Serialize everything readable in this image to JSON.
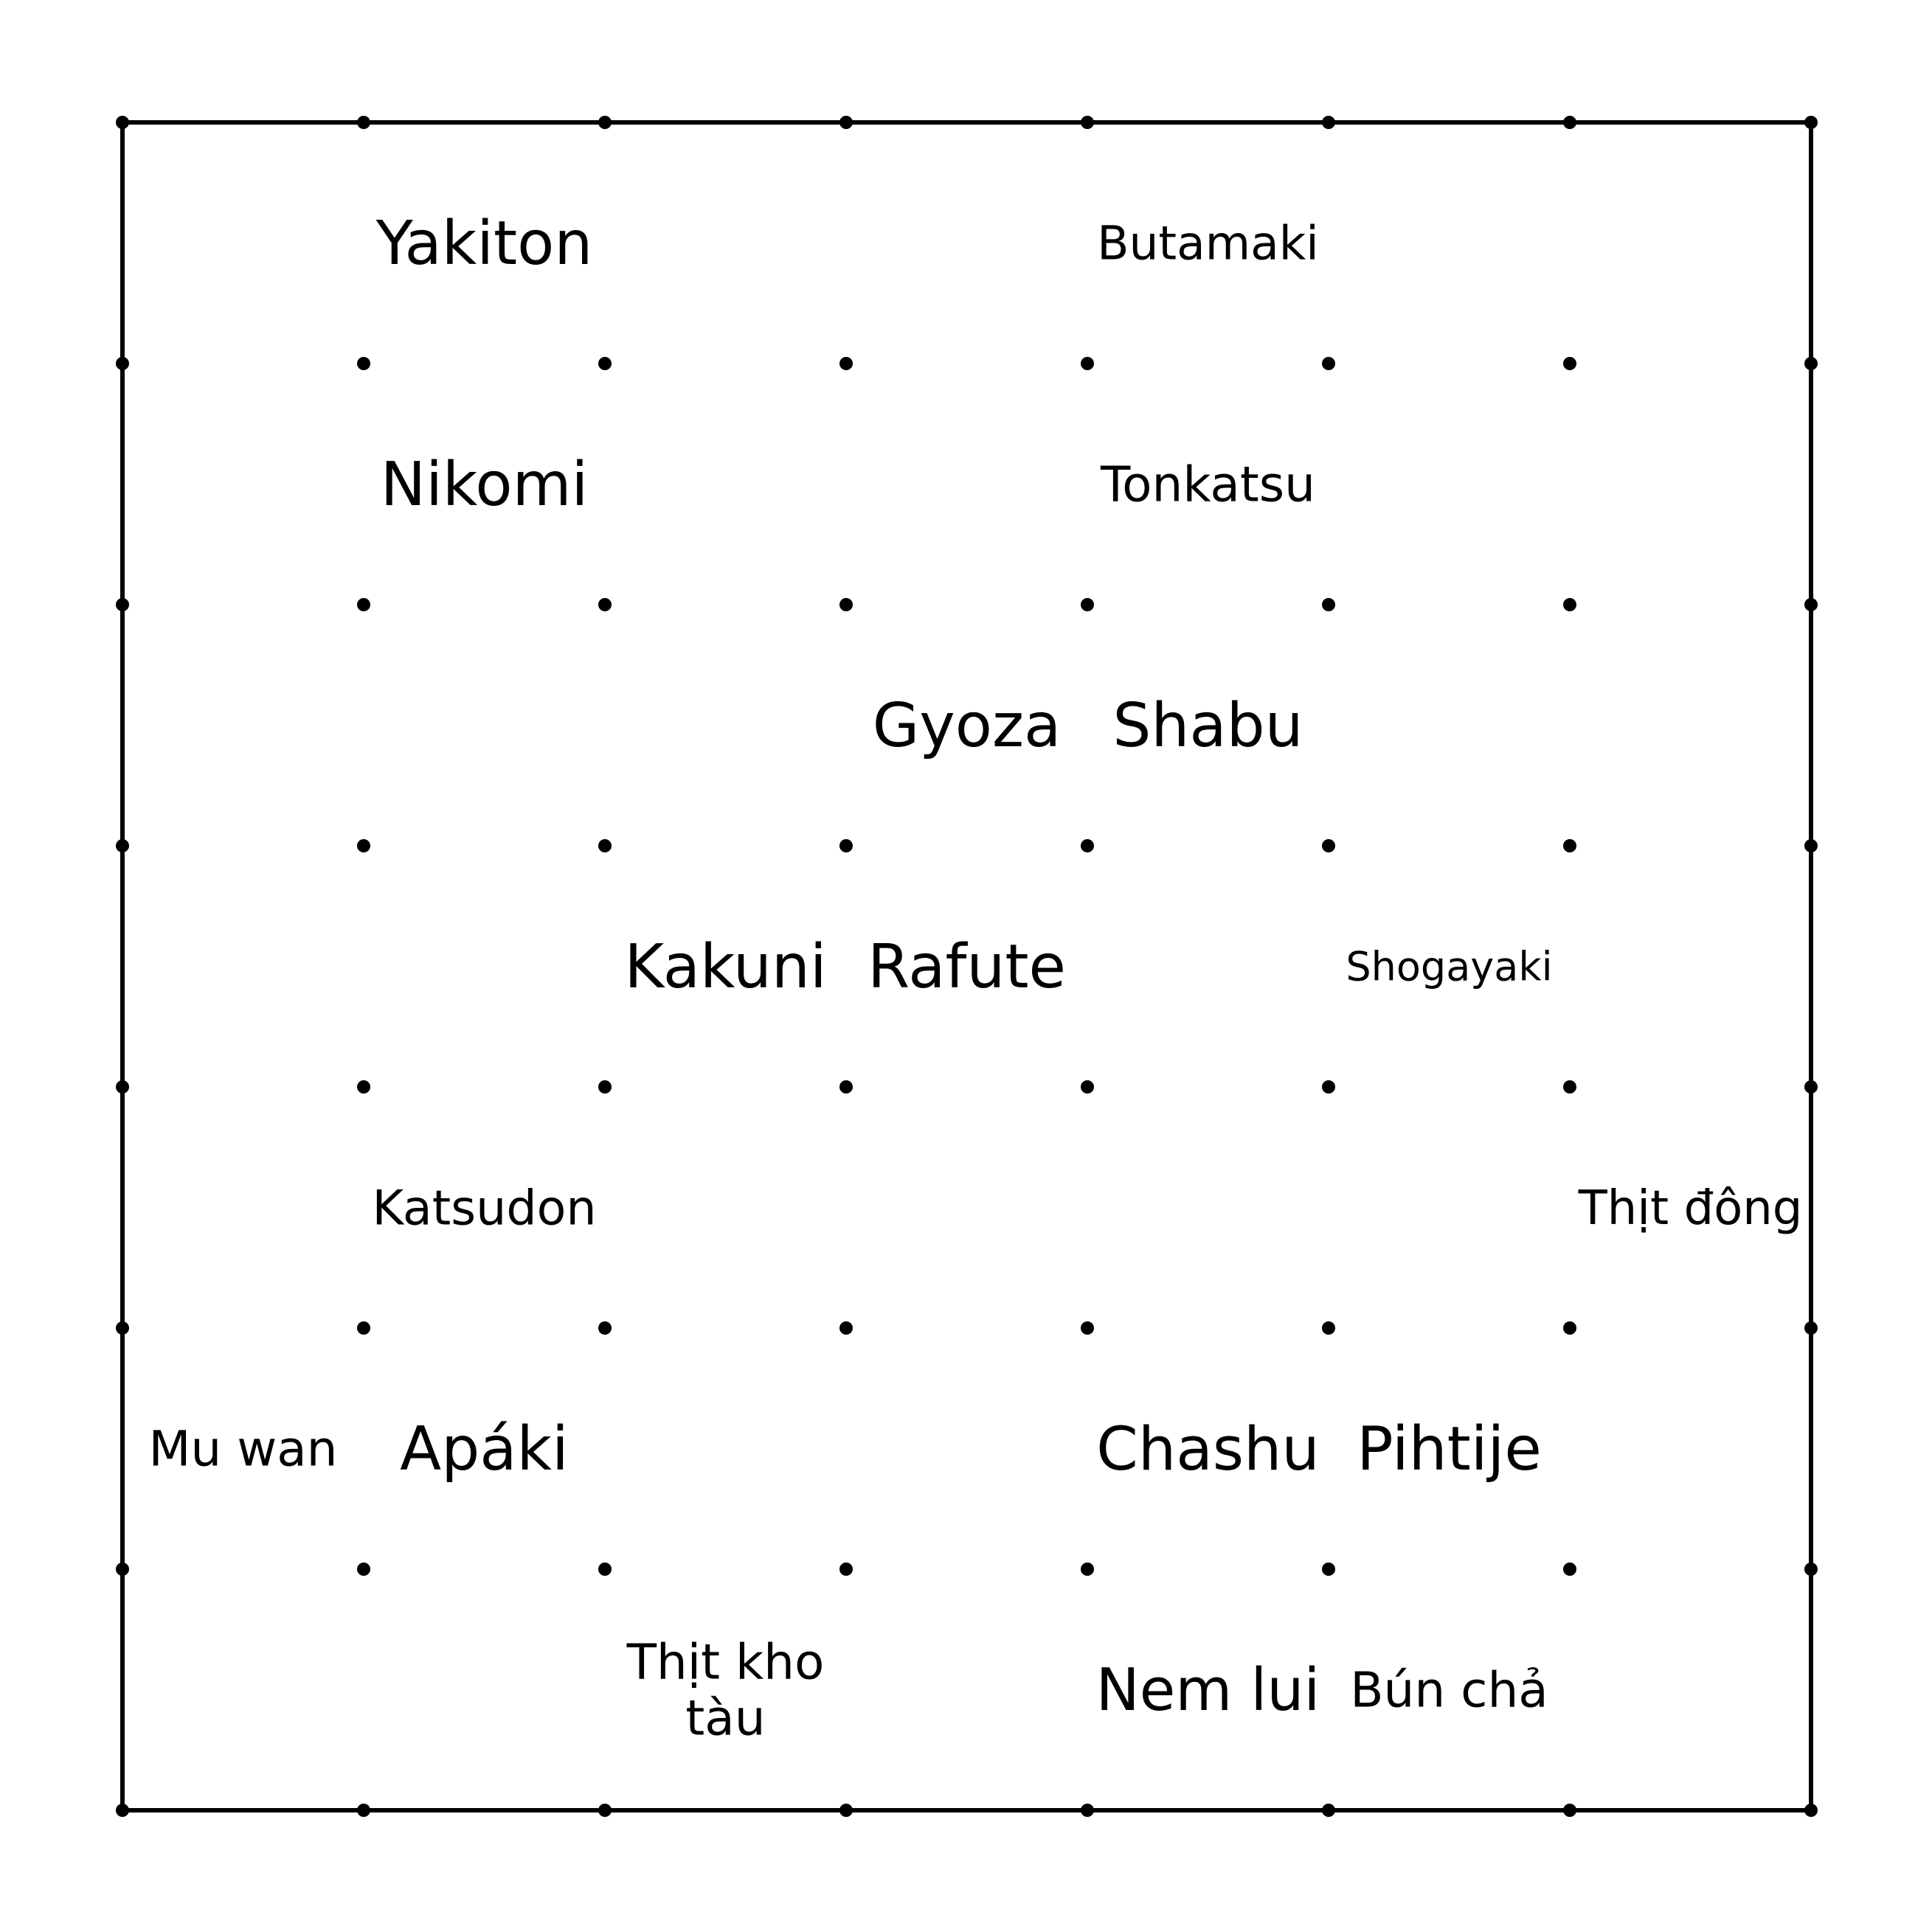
{
  "board": {
    "rows": 7,
    "cols": 7,
    "line_color": "#000000",
    "background": "#ffffff"
  },
  "words": [
    {
      "id": "yakiton",
      "text": "Yakiton",
      "row": 0,
      "col": 1,
      "size": "large"
    },
    {
      "id": "butamaki",
      "text": "Butamaki",
      "row": 0,
      "col": 4,
      "size": "medium"
    },
    {
      "id": "nikomi",
      "text": "Nikomi",
      "row": 1,
      "col": 1,
      "size": "large"
    },
    {
      "id": "tonkatsu",
      "text": "Tonkatsu",
      "row": 1,
      "col": 4,
      "size": "medium"
    },
    {
      "id": "gyoza",
      "text": "Gyoza",
      "row": 2,
      "col": 3,
      "size": "large"
    },
    {
      "id": "shabu",
      "text": "Shabu",
      "row": 2,
      "col": 4,
      "size": "large"
    },
    {
      "id": "kakuni",
      "text": "Kakuni",
      "row": 3,
      "col": 2,
      "size": "large"
    },
    {
      "id": "rafute",
      "text": "Rafute",
      "row": 3,
      "col": 3,
      "size": "large"
    },
    {
      "id": "shogayaki",
      "text": "Shogayaki",
      "row": 3,
      "col": 5,
      "size": "small"
    },
    {
      "id": "katsudon",
      "text": "Katsudon",
      "row": 4,
      "col": 1,
      "size": "medium"
    },
    {
      "id": "thit-dong",
      "text": "Thịt đông",
      "row": 4,
      "col": 6,
      "size": "medium"
    },
    {
      "id": "mu-wan",
      "text": "Mu wan",
      "row": 5,
      "col": 0,
      "size": "medium"
    },
    {
      "id": "apaki",
      "text": "Apáki",
      "row": 5,
      "col": 1,
      "size": "large"
    },
    {
      "id": "chashu",
      "text": "Chashu",
      "row": 5,
      "col": 4,
      "size": "large"
    },
    {
      "id": "pihtije",
      "text": "Pihtije",
      "row": 5,
      "col": 5,
      "size": "large"
    },
    {
      "id": "thit-kho-tau",
      "text": "Thịt kho tàu",
      "lines": [
        "Thịt kho",
        "tàu"
      ],
      "row": 6,
      "col": 2,
      "size": "medium"
    },
    {
      "id": "nem-lui",
      "text": "Nem lui",
      "row": 6,
      "col": 4,
      "size": "large"
    },
    {
      "id": "bun-cha",
      "text": "Bún chả",
      "row": 6,
      "col": 5,
      "size": "medium"
    }
  ]
}
